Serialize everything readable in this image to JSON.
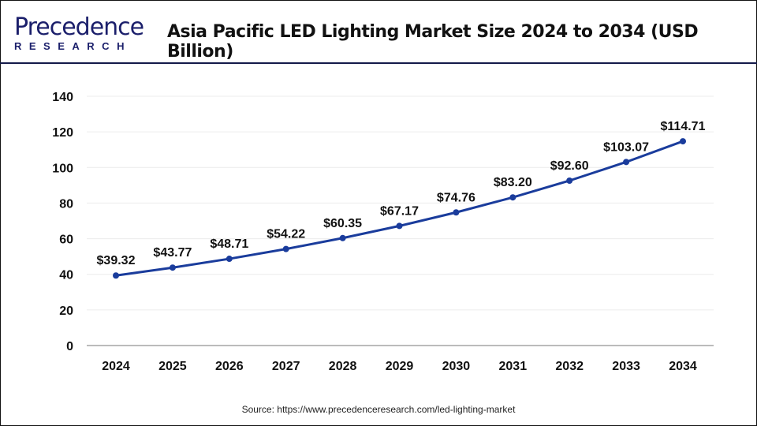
{
  "header": {
    "logo_top": "Precedence",
    "logo_bottom": "RESEARCH",
    "title": "Asia Pacific LED Lighting Market Size 2024 to 2034 (USD Billion)"
  },
  "source": "Source: https://www.precedenceresearch.com/led-lighting-market",
  "chart_data": {
    "type": "line",
    "title": "Asia Pacific LED Lighting Market Size 2024 to 2034 (USD Billion)",
    "categories": [
      "2024",
      "2025",
      "2026",
      "2027",
      "2028",
      "2029",
      "2030",
      "2031",
      "2032",
      "2033",
      "2034"
    ],
    "values": [
      39.32,
      43.77,
      48.71,
      54.22,
      60.35,
      67.17,
      74.76,
      83.2,
      92.6,
      103.07,
      114.71
    ],
    "data_labels": [
      "$39.32",
      "$43.77",
      "$48.71",
      "$54.22",
      "$60.35",
      "$67.17",
      "$74.76",
      "$83.20",
      "$92.60",
      "$103.07",
      "$114.71"
    ],
    "yticks": [
      "0",
      "20",
      "40",
      "60",
      "80",
      "100",
      "120",
      "140"
    ],
    "ylim": [
      0,
      140
    ],
    "grid": true,
    "color": "#1a3c9c"
  }
}
